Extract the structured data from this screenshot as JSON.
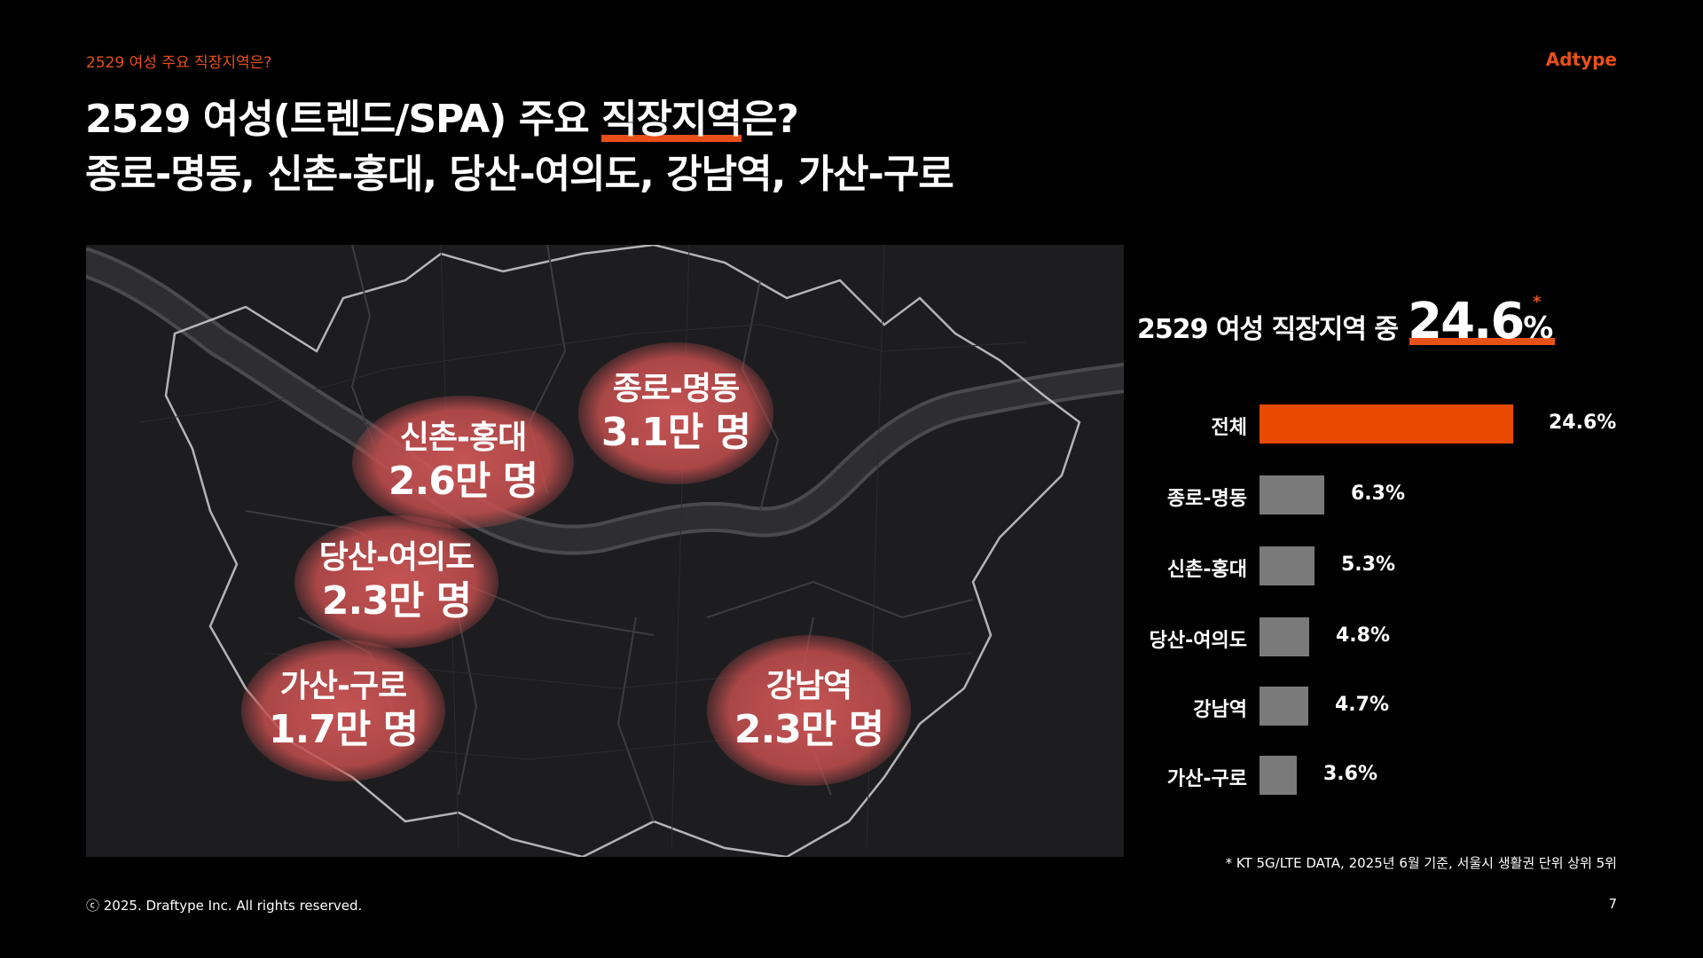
{
  "header": {
    "section_label": "2529 여성 주요 직장지역은?",
    "brand": "Adtype"
  },
  "title": {
    "line1_prefix": "2529 여성(트렌드/SPA) 주요 ",
    "line1_highlight": "직장지역",
    "line1_suffix": "은?",
    "line2": "종로-명동, 신촌-홍대, 당산-여의도, 강남역, 가산-구로"
  },
  "map": {
    "regions": [
      {
        "name": "종로-명동",
        "value": "3.1만 명"
      },
      {
        "name": "신촌-홍대",
        "value": "2.6만 명"
      },
      {
        "name": "당산-여의도",
        "value": "2.3만 명"
      },
      {
        "name": "가산-구로",
        "value": "1.7만 명"
      },
      {
        "name": "강남역",
        "value": "2.3만 명"
      }
    ]
  },
  "panel": {
    "lead": "2529 여성 직장지역 중",
    "big_value": "24.6",
    "percent_sign": "%",
    "asterisk": "*"
  },
  "chart_data": {
    "type": "bar",
    "orientation": "horizontal",
    "categories": [
      "전체",
      "종로-명동",
      "신촌-홍대",
      "당산-여의도",
      "강남역",
      "가산-구로"
    ],
    "values": [
      24.6,
      6.3,
      5.3,
      4.8,
      4.7,
      3.6
    ],
    "value_labels": [
      "24.6%",
      "6.3%",
      "5.3%",
      "4.8%",
      "4.7%",
      "3.6%"
    ],
    "colors": [
      "#e84a00",
      "#7a7a7a",
      "#7a7a7a",
      "#7a7a7a",
      "#7a7a7a",
      "#7a7a7a"
    ]
  },
  "footer": {
    "footnote": "* KT 5G/LTE DATA, 2025년 6월 기준, 서울시 생활권 단위 상위 5위",
    "copyright": "ⓒ 2025. Draftype Inc. All rights reserved.",
    "page_number": "7"
  }
}
